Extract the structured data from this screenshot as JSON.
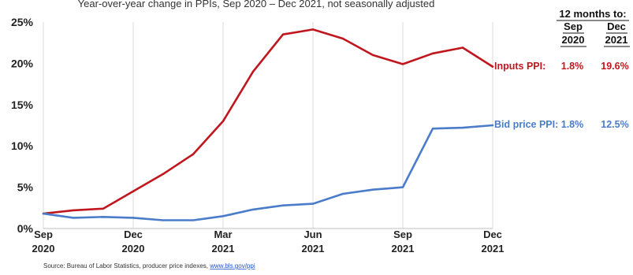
{
  "chart_data": {
    "type": "line",
    "subtitle": "Year-over-year change in PPIs, Sep 2020 – Dec 2021, not seasonally adjusted",
    "x": [
      "2020-09",
      "2020-10",
      "2020-11",
      "2020-12",
      "2021-01",
      "2021-02",
      "2021-03",
      "2021-04",
      "2021-05",
      "2021-06",
      "2021-07",
      "2021-08",
      "2021-09",
      "2021-10",
      "2021-11",
      "2021-12"
    ],
    "x_ticks": [
      {
        "month": "Sep",
        "year": "2020",
        "index": 0
      },
      {
        "month": "Dec",
        "year": "2020",
        "index": 3
      },
      {
        "month": "Mar",
        "year": "2021",
        "index": 6
      },
      {
        "month": "Jun",
        "year": "2021",
        "index": 9
      },
      {
        "month": "Sep",
        "year": "2021",
        "index": 12
      },
      {
        "month": "Dec",
        "year": "2021",
        "index": 15
      }
    ],
    "ylim": [
      0,
      25
    ],
    "y_ticks": [
      0,
      5,
      10,
      15,
      20,
      25
    ],
    "y_tick_labels": [
      "0%",
      "5%",
      "10%",
      "15%",
      "20%",
      "25%"
    ],
    "grid": "vertical",
    "series": [
      {
        "name": "Inputs PPI",
        "color": "#c0171f",
        "values": [
          1.8,
          2.2,
          2.4,
          4.5,
          6.6,
          9.0,
          13.0,
          19.0,
          23.5,
          24.1,
          23.0,
          21.0,
          19.9,
          21.2,
          21.9,
          19.6
        ]
      },
      {
        "name": "Bid price PPI",
        "color": "#4a7cc9",
        "values": [
          1.8,
          1.3,
          1.4,
          1.3,
          1.0,
          1.0,
          1.5,
          2.3,
          2.8,
          3.0,
          4.2,
          4.7,
          5.0,
          12.1,
          12.2,
          12.5
        ]
      }
    ],
    "legend_table": {
      "header_top": "12 months to:",
      "col1_month": "Sep",
      "col1_year": "2020",
      "col2_month": "Dec",
      "col2_year": "2021",
      "rows": [
        {
          "label": "Inputs PPI:",
          "col1": "1.8%",
          "col2": "19.6%",
          "color": "#c0171f"
        },
        {
          "label": "Bid price PPI:",
          "col1": "1.8%",
          "col2": "12.5%",
          "color": "#4a7cc9"
        }
      ]
    }
  },
  "source": {
    "text": "Source: Bureau of Labor Statistics, producer price indexes, ",
    "link": "www.bls.gov/ppi"
  }
}
